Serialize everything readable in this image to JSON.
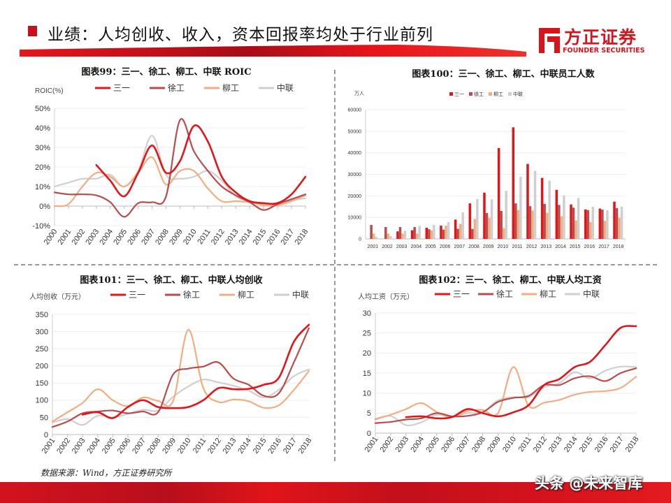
{
  "header": {
    "title": "业绩：人均创收、收入，资本回报率均处于行业前列",
    "logo_cn": "方正证券",
    "logo_en": "FOUNDER SECURITIES",
    "brand_color": "#c8101e"
  },
  "charts": {
    "c99_title": "图表99：三一、徐工、柳工、中联 ROIC",
    "c100_title": "图表100：三一、徐工、柳工、中联员工人数",
    "c101_title": "图表101：三一、徐工、柳工、中联人均创收",
    "c102_title": "图表102：三一、徐工、柳工、中联人均工资"
  },
  "footer": {
    "source": "数据来源：Wind，方正证券研究所",
    "watermark": "头条 @未来智库"
  },
  "series_colors": {
    "三一": "#e0161b",
    "徐工": "#b94c4c",
    "柳工": "#f2ad80",
    "中联": "#cfcfcf"
  },
  "chart_data": [
    {
      "type": "line",
      "ylabel": "ROIC(%)",
      "categories": [
        "2000",
        "2001",
        "2002",
        "2003",
        "2004",
        "2005",
        "2006",
        "2007",
        "2008",
        "2009",
        "2010",
        "2011",
        "2012",
        "2013",
        "2014",
        "2015",
        "2016",
        "2017",
        "2018"
      ],
      "ylim": [
        -10,
        50
      ],
      "yticks": [
        "-10%",
        "0%",
        "10%",
        "20%",
        "30%",
        "40%",
        "50%"
      ],
      "ytick_values": [
        -10,
        0,
        10,
        20,
        30,
        40,
        50
      ],
      "legend": "top",
      "series": [
        {
          "name": "三一",
          "values": [
            null,
            null,
            null,
            21,
            13,
            5,
            17,
            31,
            17,
            23,
            41,
            33,
            15,
            7,
            2.5,
            1.5,
            1.5,
            6,
            15
          ]
        },
        {
          "name": "徐工",
          "values": [
            7,
            6,
            6,
            5.5,
            2,
            -5.5,
            1.5,
            2,
            5,
            44,
            28,
            18,
            10,
            5.5,
            2,
            -2,
            1,
            3.5,
            6
          ]
        },
        {
          "name": "柳工",
          "values": [
            0,
            1,
            10,
            17,
            15,
            10,
            17,
            25,
            11,
            18,
            18,
            9,
            2.5,
            2.5,
            2,
            0.5,
            0.5,
            2.5,
            5.5
          ]
        },
        {
          "name": "中联",
          "values": [
            10,
            12,
            14,
            14,
            16,
            10,
            18,
            36,
            16,
            14,
            15,
            18,
            13,
            5,
            2.5,
            1,
            1.5,
            3,
            4
          ]
        }
      ]
    },
    {
      "type": "bar",
      "ylabel": "万人",
      "categories": [
        "2001",
        "2002",
        "2003",
        "2004",
        "2005",
        "2006",
        "2007",
        "2008",
        "2009",
        "2010",
        "2011",
        "2012",
        "2013",
        "2014",
        "2015",
        "2016",
        "2017",
        "2018"
      ],
      "ylim": [
        0,
        60000
      ],
      "yticks": [
        "0",
        "10000",
        "20000",
        "30000",
        "40000",
        "50000",
        "60000"
      ],
      "ytick_values": [
        0,
        10000,
        20000,
        30000,
        40000,
        50000,
        60000
      ],
      "legend": "top",
      "series": [
        {
          "name": "三一",
          "values": [
            0,
            0,
            3500,
            4000,
            5200,
            6200,
            9000,
            16500,
            21500,
            42200,
            51800,
            34800,
            28300,
            22800,
            16000,
            13700,
            14100,
            17300
          ]
        },
        {
          "name": "徐工",
          "values": [
            6500,
            5500,
            5500,
            5500,
            4500,
            4300,
            4700,
            4600,
            12000,
            13000,
            16500,
            15200,
            16300,
            15800,
            14500,
            13400,
            13600,
            14300
          ]
        },
        {
          "name": "柳工",
          "values": [
            2500,
            2500,
            2500,
            2500,
            4000,
            6200,
            7000,
            9300,
            9800,
            5000,
            13400,
            13200,
            12100,
            10500,
            8600,
            7800,
            8400,
            9800
          ]
        },
        {
          "name": "中联",
          "values": [
            1000,
            1300,
            3800,
            6100,
            6500,
            7800,
            12300,
            18500,
            18400,
            22300,
            28900,
            31600,
            27000,
            20200,
            19000,
            14900,
            13300,
            15000
          ]
        }
      ]
    },
    {
      "type": "line",
      "ylabel": "人均创收（万元）",
      "categories": [
        "2001",
        "2002",
        "2003",
        "2004",
        "2005",
        "2006",
        "2007",
        "2008",
        "2009",
        "2010",
        "2011",
        "2012",
        "2013",
        "2014",
        "2015",
        "2016",
        "2017",
        "2018"
      ],
      "ylim": [
        0,
        350
      ],
      "yticks": [
        "0",
        "50",
        "100",
        "150",
        "200",
        "250",
        "300",
        "350"
      ],
      "ytick_values": [
        0,
        50,
        100,
        150,
        200,
        250,
        300,
        350
      ],
      "legend": "top",
      "series": [
        {
          "name": "三一",
          "values": [
            null,
            null,
            58,
            65,
            48,
            80,
            100,
            80,
            77,
            80,
            100,
            135,
            132,
            133,
            145,
            165,
            270,
            320
          ]
        },
        {
          "name": "徐工",
          "values": [
            22,
            38,
            62,
            67,
            70,
            62,
            67,
            65,
            175,
            192,
            198,
            210,
            163,
            145,
            113,
            120,
            210,
            310
          ]
        },
        {
          "name": "柳工",
          "values": [
            38,
            65,
            92,
            132,
            100,
            83,
            108,
            98,
            98,
            305,
            135,
            95,
            102,
            97,
            78,
            85,
            130,
            185
          ]
        },
        {
          "name": "中联",
          "values": [
            35,
            45,
            28,
            55,
            50,
            60,
            72,
            70,
            110,
            140,
            160,
            152,
            142,
            128,
            108,
            130,
            170,
            190
          ]
        }
      ]
    },
    {
      "type": "line",
      "ylabel": "人均工资（万元）",
      "categories": [
        "2001",
        "2002",
        "2003",
        "2004",
        "2005",
        "2006",
        "2007",
        "2008",
        "2009",
        "2010",
        "2011",
        "2012",
        "2013",
        "2014",
        "2015",
        "2016",
        "2017",
        "2018"
      ],
      "ylim": [
        0,
        30
      ],
      "yticks": [
        "0",
        "5",
        "10",
        "15",
        "20",
        "25",
        "30"
      ],
      "ytick_values": [
        0,
        5,
        10,
        15,
        20,
        25,
        30
      ],
      "legend": "top",
      "series": [
        {
          "name": "三一",
          "values": [
            null,
            null,
            4,
            4.2,
            3.7,
            4,
            6,
            5,
            4.2,
            5.2,
            7,
            12,
            13.5,
            16.5,
            17.8,
            22,
            26.3,
            26.7
          ]
        },
        {
          "name": "徐工",
          "values": [
            2.5,
            2.8,
            3.4,
            3.7,
            5,
            4.2,
            4.3,
            5.2,
            7.8,
            8.8,
            9.3,
            12,
            12,
            13.7,
            14.2,
            13,
            15,
            16.2
          ]
        },
        {
          "name": "柳工",
          "values": [
            3.4,
            4.6,
            6,
            7.5,
            5.3,
            4,
            5.5,
            5.8,
            5,
            16.5,
            6.8,
            7.6,
            8.3,
            9.6,
            10.3,
            10.5,
            11.3,
            14.1
          ]
        },
        {
          "name": "中联",
          "values": [
            3.6,
            4.3,
            2,
            2.7,
            4.6,
            4,
            5,
            5.2,
            8.2,
            9,
            9,
            11.5,
            12.5,
            15.2,
            13.7,
            15.6,
            16.6,
            16.5
          ]
        }
      ]
    }
  ]
}
